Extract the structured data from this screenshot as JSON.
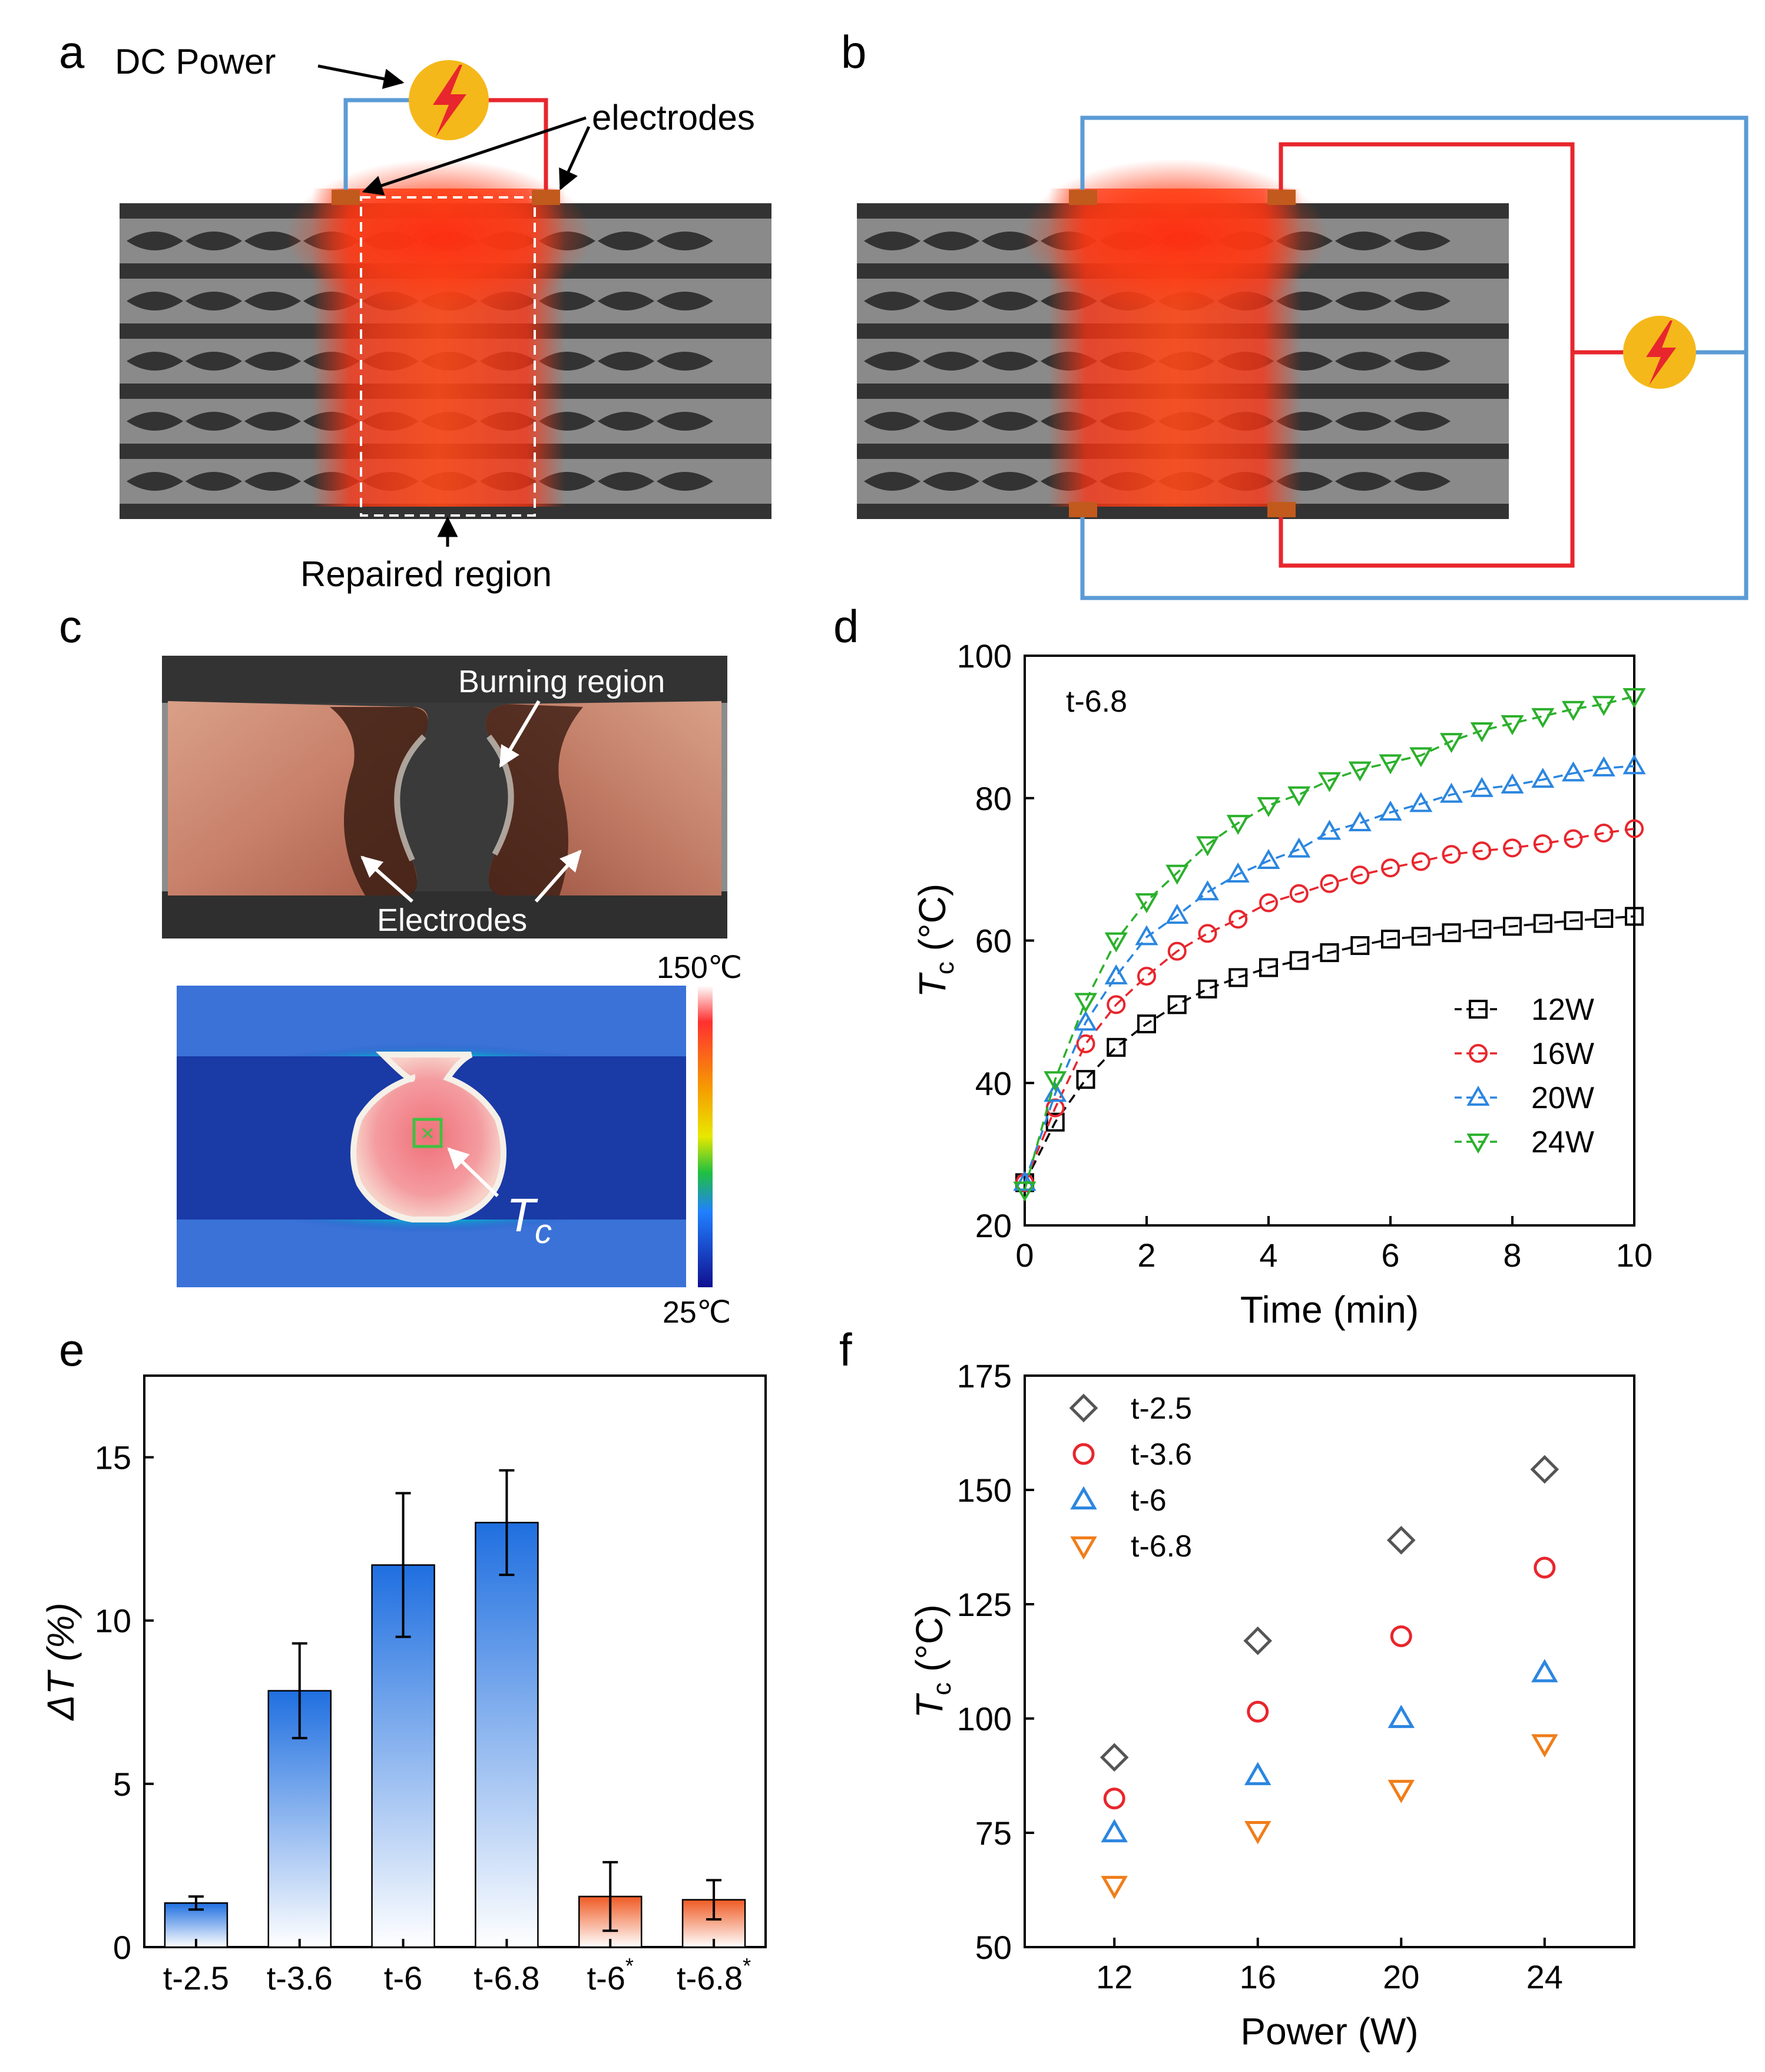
{
  "panels": {
    "a": {
      "label": "a",
      "dc_power": "DC Power",
      "electrodes": "electrodes",
      "repaired_region": "Repaired region"
    },
    "b": {
      "label": "b"
    },
    "c": {
      "label": "c",
      "burning_region": "Burning region",
      "electrodes": "Electrodes",
      "scale_max": "150℃",
      "scale_min": "25℃",
      "tc_main": "T",
      "tc_sub": "c"
    },
    "d": {
      "label": "d"
    },
    "e": {
      "label": "e"
    },
    "f": {
      "label": "f"
    }
  },
  "colors": {
    "wire_blue": "#5b9bd5",
    "wire_red": "#e8262d",
    "power_icon": "#f5b81a",
    "bolt": "#e8262d",
    "electrode": "#c15a1c"
  },
  "chart_data": [
    {
      "panel": "d",
      "type": "line",
      "annotation": "t-6.8",
      "xlabel": "Time (min)",
      "ylabel_main": "T",
      "ylabel_sub": "c",
      "ylabel_unit": " (°C)",
      "xlim": [
        0,
        10
      ],
      "ylim": [
        20,
        100
      ],
      "xticks": [
        0,
        2,
        4,
        6,
        8,
        10
      ],
      "yticks": [
        20,
        40,
        60,
        80,
        100
      ],
      "legend_position": "lower-right",
      "x": [
        0,
        0.5,
        1,
        1.5,
        2,
        2.5,
        3,
        3.5,
        4,
        4.5,
        5,
        5.5,
        6,
        6.5,
        7,
        7.5,
        8,
        8.5,
        9,
        9.5,
        10
      ],
      "series": [
        {
          "name": "12W",
          "color": "#000000",
          "marker": "square",
          "values": [
            26,
            34.5,
            40.5,
            45,
            48.3,
            51,
            53.2,
            54.8,
            56.2,
            57.2,
            58.3,
            59.3,
            60.2,
            60.6,
            61.1,
            61.6,
            62,
            62.4,
            62.8,
            63.1,
            63.4
          ]
        },
        {
          "name": "16W",
          "color": "#e8262d",
          "marker": "circle",
          "values": [
            26,
            36.5,
            45.5,
            51,
            55,
            58.5,
            61,
            63,
            65.3,
            66.6,
            68,
            69.2,
            70.2,
            71.1,
            72.1,
            72.6,
            73,
            73.6,
            74.3,
            75.1,
            75.7
          ]
        },
        {
          "name": "20W",
          "color": "#2b86e0",
          "marker": "triangle-up",
          "values": [
            26,
            38.5,
            48.5,
            55,
            60.5,
            63.5,
            66.8,
            69.3,
            71.2,
            72.8,
            75.3,
            76.5,
            78,
            79.2,
            80.5,
            81.3,
            81.8,
            82.6,
            83.5,
            84.2,
            84.5
          ]
        },
        {
          "name": "24W",
          "color": "#2bb02b",
          "marker": "triangle-down",
          "values": [
            25,
            40.5,
            51.5,
            60,
            65.5,
            69.5,
            73.5,
            76.5,
            79,
            80.5,
            82.5,
            84,
            85,
            86,
            88,
            89.5,
            90.5,
            91.5,
            92.5,
            93.2,
            94.3
          ]
        }
      ]
    },
    {
      "panel": "e",
      "type": "bar",
      "ylabel": "ΔT (%)",
      "ylim": [
        0,
        17.5
      ],
      "yticks": [
        0,
        5,
        10,
        15
      ],
      "categories": [
        {
          "label": "t-2.5",
          "sup": ""
        },
        {
          "label": "t-3.6",
          "sup": ""
        },
        {
          "label": "t-6",
          "sup": ""
        },
        {
          "label": "t-6.8",
          "sup": ""
        },
        {
          "label": "t-6",
          "sup": "*"
        },
        {
          "label": "t-6.8",
          "sup": "*"
        }
      ],
      "values": [
        1.35,
        7.85,
        11.7,
        13.0,
        1.55,
        1.45
      ],
      "errors": [
        0.2,
        1.45,
        2.2,
        1.6,
        1.05,
        0.6
      ],
      "bar_colors": [
        "#1f6fe0",
        "#1f6fe0",
        "#1f6fe0",
        "#1f6fe0",
        "#ef5a24",
        "#ef5a24"
      ]
    },
    {
      "panel": "f",
      "type": "scatter",
      "xlabel": "Power (W)",
      "ylabel_main": "T",
      "ylabel_sub": "c",
      "ylabel_unit": " (°C)",
      "xlim": [
        9.5,
        26.5
      ],
      "ylim": [
        50,
        175
      ],
      "xticks": [
        12,
        16,
        20,
        24
      ],
      "yticks": [
        50,
        75,
        100,
        125,
        150,
        175
      ],
      "legend_position": "top-left",
      "x": [
        12,
        16,
        20,
        24
      ],
      "series": [
        {
          "name": "t-2.5",
          "color": "#555555",
          "marker": "diamond",
          "values": [
            91.5,
            117,
            139,
            154.5
          ]
        },
        {
          "name": "t-3.6",
          "color": "#e8262d",
          "marker": "circle",
          "values": [
            82.5,
            101.5,
            118,
            133
          ]
        },
        {
          "name": "t-6",
          "color": "#2b86e0",
          "marker": "triangle-up",
          "values": [
            75,
            87.5,
            100,
            110
          ]
        },
        {
          "name": "t-6.8",
          "color": "#f07d1a",
          "marker": "triangle-down",
          "values": [
            63.5,
            75.5,
            84.5,
            94.5
          ]
        }
      ]
    }
  ]
}
